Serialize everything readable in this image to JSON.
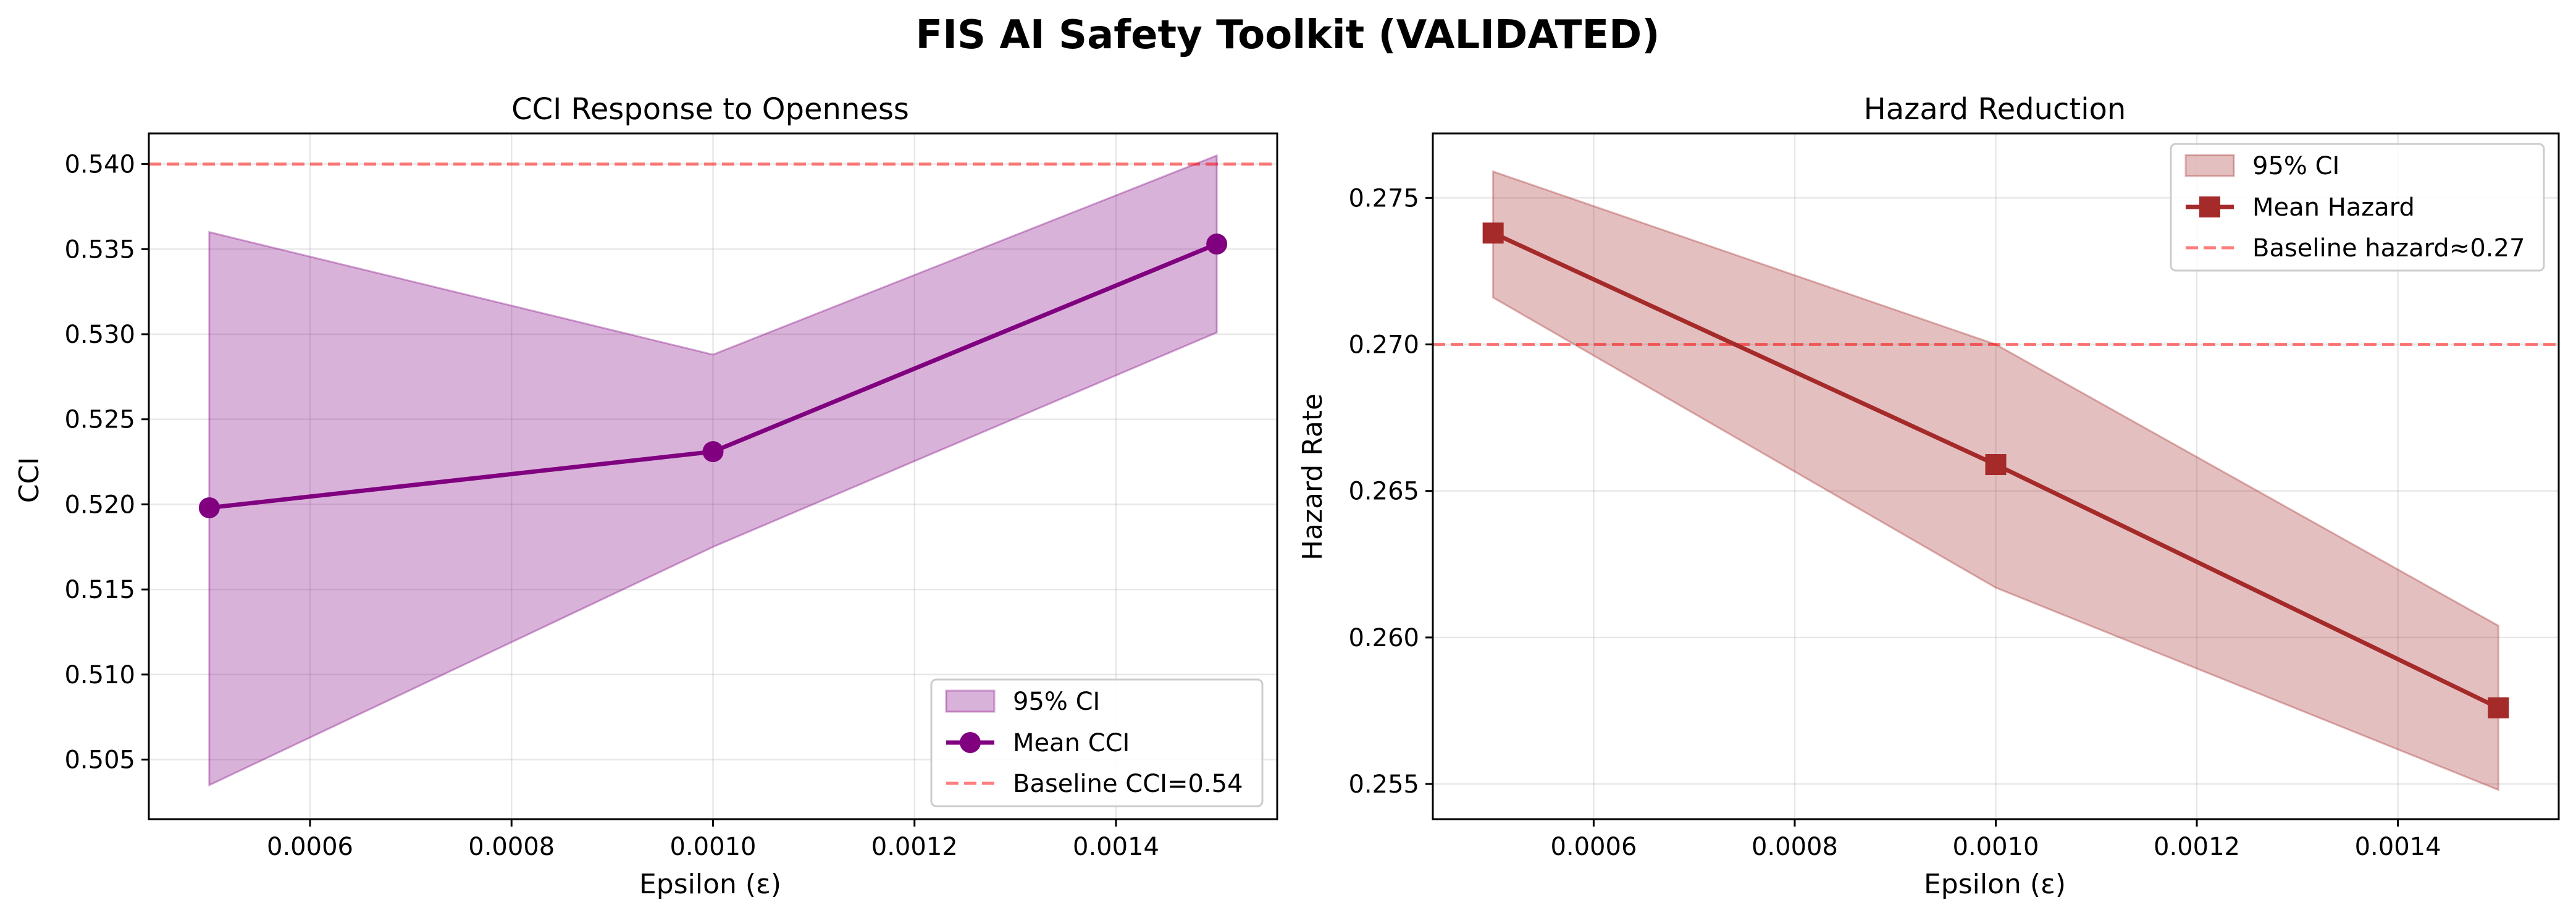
{
  "figure": {
    "suptitle": "FIS AI Safety Toolkit (VALIDATED)"
  },
  "chart_data": [
    {
      "type": "line",
      "title": "CCI Response to Openness",
      "xlabel": "Epsilon (ε)",
      "ylabel": "CCI",
      "xlim": [
        0.00044,
        0.00156
      ],
      "ylim": [
        0.5015,
        0.5418
      ],
      "xticks": [
        0.0006,
        0.0008,
        0.001,
        0.0012,
        0.0014
      ],
      "xtick_labels": [
        "0.0006",
        "0.0008",
        "0.0010",
        "0.0012",
        "0.0014"
      ],
      "yticks": [
        0.505,
        0.51,
        0.515,
        0.52,
        0.525,
        0.53,
        0.535,
        0.54
      ],
      "ytick_labels": [
        "0.505",
        "0.510",
        "0.515",
        "0.520",
        "0.525",
        "0.530",
        "0.535",
        "0.540"
      ],
      "grid": true,
      "legend_position": "lower-right",
      "x": [
        0.0005,
        0.001,
        0.0015
      ],
      "series": [
        {
          "name": "Mean CCI",
          "values": [
            0.5198,
            0.5231,
            0.5353
          ],
          "color": "#800080",
          "marker": "circle"
        }
      ],
      "ci": {
        "name": "95% CI",
        "lower": [
          0.5035,
          0.5175,
          0.5301
        ],
        "upper": [
          0.536,
          0.5288,
          0.5405
        ],
        "color": "#800080"
      },
      "baseline": {
        "name": "Baseline CCI=0.54",
        "value": 0.54,
        "color": "#ff0000"
      },
      "legend": [
        "95% CI",
        "Mean CCI",
        "Baseline CCI=0.54"
      ]
    },
    {
      "type": "line",
      "title": "Hazard Reduction",
      "xlabel": "Epsilon (ε)",
      "ylabel": "Hazard Rate",
      "xlim": [
        0.00044,
        0.00156
      ],
      "ylim": [
        0.2538,
        0.2772
      ],
      "xticks": [
        0.0006,
        0.0008,
        0.001,
        0.0012,
        0.0014
      ],
      "xtick_labels": [
        "0.0006",
        "0.0008",
        "0.0010",
        "0.0012",
        "0.0014"
      ],
      "yticks": [
        0.255,
        0.26,
        0.265,
        0.27,
        0.275
      ],
      "ytick_labels": [
        "0.255",
        "0.260",
        "0.265",
        "0.270",
        "0.275"
      ],
      "grid": true,
      "legend_position": "upper-right",
      "x": [
        0.0005,
        0.001,
        0.0015
      ],
      "series": [
        {
          "name": "Mean Hazard",
          "values": [
            0.2738,
            0.2659,
            0.2576
          ],
          "color": "#a52a2a",
          "marker": "square"
        }
      ],
      "ci": {
        "name": "95% CI",
        "lower": [
          0.2716,
          0.2617,
          0.2548
        ],
        "upper": [
          0.2759,
          0.27,
          0.2604
        ],
        "color": "#a52a2a"
      },
      "baseline": {
        "name": "Baseline hazard≈0.27",
        "value": 0.27,
        "color": "#ff0000"
      },
      "legend": [
        "95% CI",
        "Mean Hazard",
        "Baseline hazard≈0.27"
      ]
    }
  ]
}
